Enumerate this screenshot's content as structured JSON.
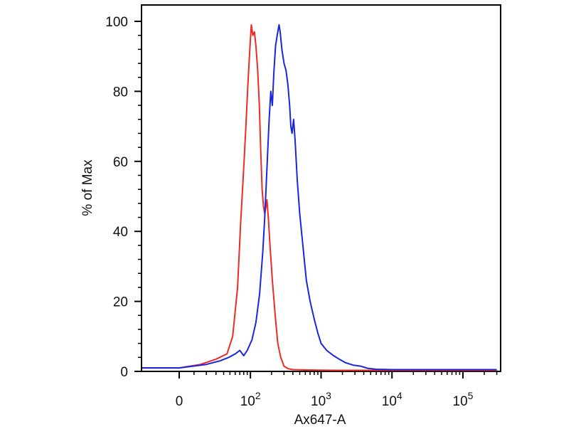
{
  "chart_data": {
    "type": "line",
    "title": "",
    "xlabel": "Ax647-A",
    "ylabel": "% of Max",
    "x_scale": "biexponential",
    "x_ticks": [
      {
        "value": 0,
        "label": "0"
      },
      {
        "value": 100,
        "label": "10",
        "exp": "2"
      },
      {
        "value": 1000,
        "label": "10",
        "exp": "3"
      },
      {
        "value": 10000,
        "label": "10",
        "exp": "4"
      },
      {
        "value": 100000,
        "label": "10",
        "exp": "5"
      }
    ],
    "y_ticks": [
      "0",
      "20",
      "40",
      "60",
      "80",
      "100"
    ],
    "ylim": [
      0,
      100
    ],
    "grid": false,
    "legend": "none",
    "series": [
      {
        "color": "#ee2a24",
        "points": [
          [
            -150,
            1
          ],
          [
            0,
            1
          ],
          [
            15,
            2
          ],
          [
            30,
            3.5
          ],
          [
            45,
            5
          ],
          [
            55,
            10
          ],
          [
            65,
            24
          ],
          [
            72,
            42
          ],
          [
            80,
            58
          ],
          [
            86,
            70
          ],
          [
            92,
            82
          ],
          [
            98,
            92
          ],
          [
            103,
            99
          ],
          [
            108,
            96
          ],
          [
            114,
            97
          ],
          [
            120,
            93
          ],
          [
            127,
            86
          ],
          [
            134,
            76
          ],
          [
            140,
            64
          ],
          [
            147,
            52
          ],
          [
            154,
            47
          ],
          [
            160,
            45
          ],
          [
            166,
            47
          ],
          [
            172,
            49
          ],
          [
            180,
            44
          ],
          [
            190,
            36
          ],
          [
            205,
            26
          ],
          [
            225,
            16
          ],
          [
            245,
            8
          ],
          [
            270,
            4
          ],
          [
            300,
            1.5
          ],
          [
            340,
            0.8
          ],
          [
            400,
            0.5
          ],
          [
            600,
            0.4
          ],
          [
            1500,
            0.3
          ],
          [
            10000,
            0.3
          ],
          [
            300000,
            0.3
          ]
        ]
      },
      {
        "color": "#1a25e0",
        "points": [
          [
            -150,
            1
          ],
          [
            -20,
            1
          ],
          [
            0,
            1
          ],
          [
            20,
            2
          ],
          [
            35,
            3
          ],
          [
            48,
            4
          ],
          [
            60,
            5
          ],
          [
            70,
            6
          ],
          [
            80,
            4.5
          ],
          [
            90,
            6
          ],
          [
            105,
            9
          ],
          [
            120,
            14
          ],
          [
            135,
            22
          ],
          [
            150,
            34
          ],
          [
            160,
            44
          ],
          [
            172,
            58
          ],
          [
            185,
            72
          ],
          [
            195,
            80
          ],
          [
            205,
            76
          ],
          [
            215,
            85
          ],
          [
            228,
            93
          ],
          [
            240,
            96
          ],
          [
            255,
            99
          ],
          [
            265,
            97
          ],
          [
            280,
            92
          ],
          [
            300,
            88
          ],
          [
            320,
            86
          ],
          [
            340,
            82
          ],
          [
            360,
            76
          ],
          [
            375,
            70
          ],
          [
            390,
            68
          ],
          [
            410,
            72
          ],
          [
            430,
            66
          ],
          [
            460,
            55
          ],
          [
            500,
            45
          ],
          [
            560,
            35
          ],
          [
            620,
            26
          ],
          [
            700,
            20
          ],
          [
            800,
            15
          ],
          [
            900,
            11
          ],
          [
            1000,
            8
          ],
          [
            1200,
            6
          ],
          [
            1500,
            4.5
          ],
          [
            1800,
            3.5
          ],
          [
            2200,
            2.5
          ],
          [
            2800,
            1.8
          ],
          [
            3600,
            1.5
          ],
          [
            4500,
            0.9
          ],
          [
            6000,
            0.6
          ],
          [
            10000,
            0.5
          ],
          [
            40000,
            0.5
          ],
          [
            300000,
            0.5
          ]
        ]
      }
    ]
  }
}
